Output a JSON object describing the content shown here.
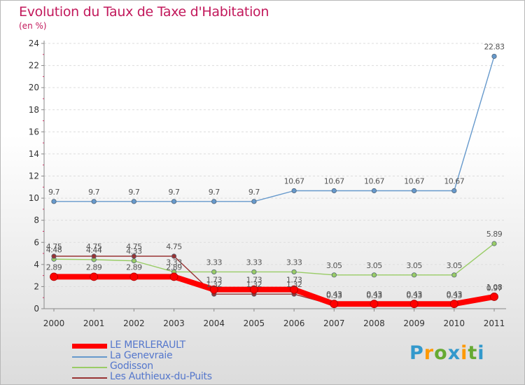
{
  "chart_data": {
    "type": "line",
    "title": "Evolution du Taux de Taxe d'Habitation",
    "subtitle": "(en %)",
    "xlabel": "",
    "ylabel": "",
    "ylim": [
      0,
      24
    ],
    "yticks": [
      "0",
      "2",
      "4",
      "6",
      "8",
      "10",
      "12",
      "14",
      "16",
      "18",
      "20",
      "22",
      "24"
    ],
    "categories": [
      "2000",
      "2001",
      "2002",
      "2003",
      "2004",
      "2005",
      "2006",
      "2007",
      "2008",
      "2009",
      "2010",
      "2011"
    ],
    "series": [
      {
        "name": "LE MERLERAULT",
        "color": "#ff0000",
        "values": [
          2.89,
          2.89,
          2.89,
          2.89,
          1.73,
          1.73,
          1.73,
          0.43,
          0.43,
          0.43,
          0.43,
          1.08
        ],
        "labels": [
          "2.89",
          "2.89",
          "2.89",
          "2.89",
          "1.73",
          "1.73",
          "1.73",
          "0.43",
          "0.43",
          "0.43",
          "0.43",
          "1.08"
        ]
      },
      {
        "name": "La Genevraie",
        "color": "#6699cc",
        "values": [
          9.7,
          9.7,
          9.7,
          9.7,
          9.7,
          9.7,
          10.67,
          10.67,
          10.67,
          10.67,
          10.67,
          22.83
        ],
        "labels": [
          "9.7",
          "9.7",
          "9.7",
          "9.7",
          "9.7",
          "9.7",
          "10.67",
          "10.67",
          "10.67",
          "10.67",
          "10.67",
          "22.83"
        ]
      },
      {
        "name": "Godisson",
        "color": "#99cc66",
        "values": [
          4.48,
          4.44,
          4.33,
          3.33,
          3.33,
          3.33,
          3.33,
          3.05,
          3.05,
          3.05,
          3.05,
          5.89
        ],
        "labels": [
          "4.48",
          "4.44",
          "4.33",
          "3.33",
          "3.33",
          "3.33",
          "3.33",
          "3.05",
          "3.05",
          "3.05",
          "3.05",
          "5.89"
        ]
      },
      {
        "name": "Les Authieux-du-Puits",
        "color": "#993333",
        "values": [
          4.75,
          4.75,
          4.75,
          4.75,
          1.32,
          1.32,
          1.32,
          0.33,
          0.33,
          0.33,
          0.33,
          0.97
        ],
        "labels": [
          "4.75",
          "4.75",
          "4.75",
          "4.75",
          "1.32",
          "1.32",
          "1.32",
          "0.33",
          "0.33",
          "0.33",
          "0.33",
          "0.97"
        ]
      }
    ],
    "legend_position": "bottom-left"
  },
  "logo": {
    "letters": [
      "P",
      "r",
      "o",
      "x",
      "i",
      "t",
      "i"
    ],
    "colors": [
      "#3399cc",
      "#ff9900",
      "#66aa33",
      "#3399cc",
      "#ff9900",
      "#66aa33",
      "#3399cc"
    ]
  }
}
